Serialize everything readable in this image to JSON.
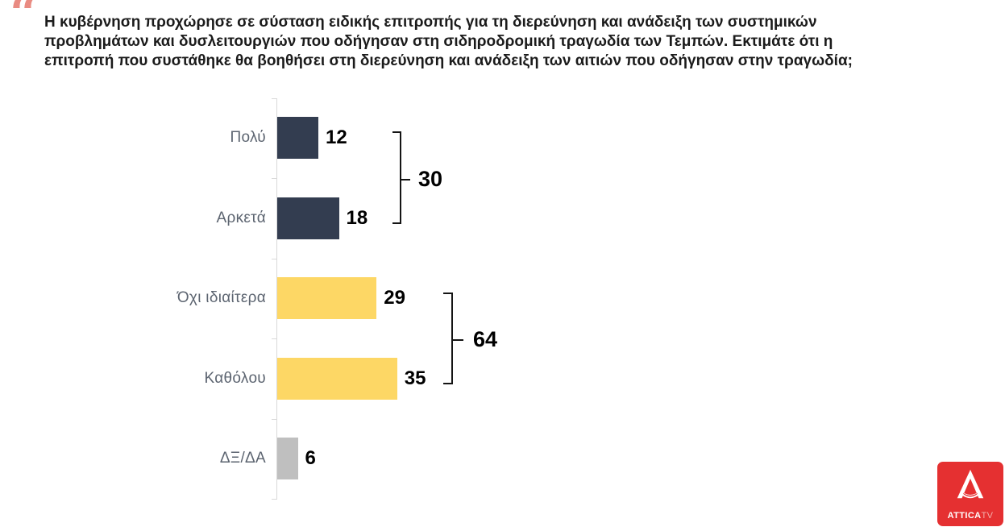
{
  "quote_mark": "“",
  "title": {
    "lines": [
      "Η κυβέρνηση προχώρησε σε σύσταση ειδικής επιτροπής για τη διερεύνηση και ανάδειξη των συστημικών",
      "προβλημάτων και δυσλειτουργιών που οδήγησαν στη σιδηροδρομική τραγωδία των Τεμπών. Εκτιμάτε ότι η",
      "επιτροπή που συστάθηκε θα βοηθήσει στη διερεύνηση και ανάδειξη των αιτιών που οδήγησαν στην τραγωδία;"
    ]
  },
  "chart_data": {
    "type": "bar",
    "orientation": "horizontal",
    "title": "Η κυβέρνηση προχώρησε σε σύσταση ειδικής επιτροπής για τη διερεύνηση και ανάδειξη των συστημικών προβλημάτων και δυσλειτουργιών που οδήγησαν στη σιδηροδρομική τραγωδία των Τεμπών. Εκτιμάτε ότι η επιτροπή που συστάθηκε θα βοηθήσει στη διερεύνηση και ανάδειξη των αιτιών που οδήγησαν στην τραγωδία;",
    "categories": [
      "Πολύ",
      "Αρκετά",
      "Όχι ιδιαίτερα",
      "Καθόλου",
      "ΔΞ/ΔΑ"
    ],
    "values": [
      12,
      18,
      29,
      35,
      6
    ],
    "bar_colors": [
      "#333d50",
      "#333d50",
      "#fdd765",
      "#fdd765",
      "#bfbfbf"
    ],
    "xlim": [
      0,
      40
    ],
    "grid": false,
    "legend": false,
    "groups": [
      {
        "label": "30",
        "members": [
          "Πολύ",
          "Αρκετά"
        ],
        "sum": 30
      },
      {
        "label": "64",
        "members": [
          "Όχι ιδιαίτερα",
          "Καθόλου"
        ],
        "sum": 64
      }
    ]
  },
  "colors": {
    "navy": "#333d50",
    "yellow": "#fdd765",
    "gray": "#bfbfbf",
    "axis": "#d9d9d9",
    "quote": "#e98b82",
    "logo_red": "#e53031"
  },
  "logo": {
    "brand": "ATTICA",
    "suffix": "TV"
  }
}
